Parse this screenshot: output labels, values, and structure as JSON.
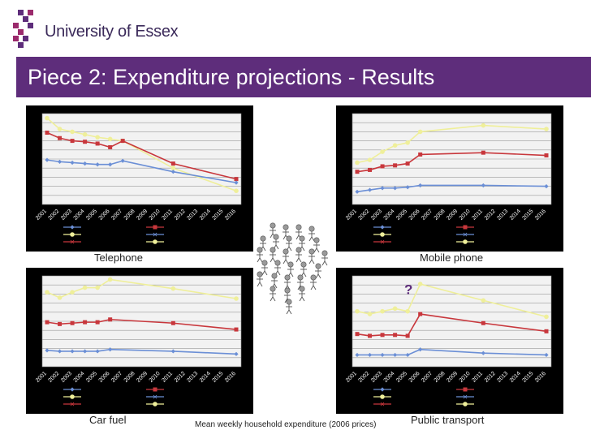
{
  "header": {
    "university": "University of Essex"
  },
  "title": "Piece 2: Expenditure projections - Results",
  "caption": "Mean weekly household expenditure (2006 prices)",
  "colors": {
    "purple": "#5e2d7b",
    "blue": "#6b8fd6",
    "red": "#c8373c",
    "yellow": "#efef9a",
    "panel": "#000000",
    "plot": "#f2f2f2"
  },
  "chart_data": [
    {
      "name": "Telephone",
      "type": "line",
      "x": [
        "2001",
        "2002",
        "2003",
        "2004",
        "2005",
        "2006",
        "2007",
        "2008",
        "2009",
        "2010",
        "2011",
        "2012",
        "2013",
        "2014",
        "2015",
        "2016"
      ],
      "ylim": [
        0,
        10
      ],
      "series": [
        {
          "color": "yellow",
          "points": [
            [
              2001,
              9.5
            ],
            [
              2002,
              8.3
            ],
            [
              2003,
              8.0
            ],
            [
              2004,
              7.7
            ],
            [
              2005,
              7.4
            ],
            [
              2006,
              7.2
            ],
            [
              2007,
              7.0
            ],
            [
              2011,
              4.0
            ],
            [
              2016,
              1.5
            ]
          ]
        },
        {
          "color": "red",
          "points": [
            [
              2001,
              7.9
            ],
            [
              2002,
              7.3
            ],
            [
              2003,
              7.0
            ],
            [
              2004,
              6.9
            ],
            [
              2005,
              6.7
            ],
            [
              2006,
              6.3
            ],
            [
              2007,
              7.0
            ],
            [
              2011,
              4.5
            ],
            [
              2016,
              2.8
            ]
          ]
        },
        {
          "color": "blue",
          "points": [
            [
              2001,
              4.9
            ],
            [
              2002,
              4.7
            ],
            [
              2003,
              4.6
            ],
            [
              2004,
              4.5
            ],
            [
              2005,
              4.4
            ],
            [
              2006,
              4.4
            ],
            [
              2007,
              4.8
            ],
            [
              2011,
              3.6
            ],
            [
              2016,
              2.4
            ]
          ]
        }
      ]
    },
    {
      "name": "Mobile phone",
      "type": "line",
      "x": [
        "2001",
        "2002",
        "2003",
        "2004",
        "2005",
        "2006",
        "2007",
        "2008",
        "2009",
        "2010",
        "2011",
        "2012",
        "2013",
        "2014",
        "2015",
        "2016"
      ],
      "ylim": [
        0,
        10
      ],
      "series": [
        {
          "color": "yellow",
          "points": [
            [
              2001,
              4.6
            ],
            [
              2002,
              4.9
            ],
            [
              2003,
              5.8
            ],
            [
              2004,
              6.5
            ],
            [
              2005,
              6.8
            ],
            [
              2006,
              8.0
            ],
            [
              2011,
              8.7
            ],
            [
              2016,
              8.3
            ]
          ]
        },
        {
          "color": "red",
          "points": [
            [
              2001,
              3.6
            ],
            [
              2002,
              3.8
            ],
            [
              2003,
              4.2
            ],
            [
              2004,
              4.3
            ],
            [
              2005,
              4.5
            ],
            [
              2006,
              5.5
            ],
            [
              2011,
              5.7
            ],
            [
              2016,
              5.4
            ]
          ]
        },
        {
          "color": "blue",
          "points": [
            [
              2001,
              1.4
            ],
            [
              2002,
              1.6
            ],
            [
              2003,
              1.8
            ],
            [
              2004,
              1.8
            ],
            [
              2005,
              1.9
            ],
            [
              2006,
              2.1
            ],
            [
              2011,
              2.1
            ],
            [
              2016,
              2.0
            ]
          ]
        }
      ]
    },
    {
      "name": "Car fuel",
      "type": "line",
      "x": [
        "2001",
        "2002",
        "2003",
        "2004",
        "2005",
        "2006",
        "2007",
        "2008",
        "2009",
        "2010",
        "2011",
        "2012",
        "2013",
        "2014",
        "2015",
        "2016"
      ],
      "ylim": [
        0,
        10
      ],
      "series": [
        {
          "color": "yellow",
          "points": [
            [
              2001,
              8.2
            ],
            [
              2002,
              7.6
            ],
            [
              2003,
              8.2
            ],
            [
              2004,
              8.7
            ],
            [
              2005,
              8.7
            ],
            [
              2006,
              9.6
            ],
            [
              2011,
              8.6
            ],
            [
              2016,
              7.5
            ]
          ]
        },
        {
          "color": "red",
          "points": [
            [
              2001,
              4.9
            ],
            [
              2002,
              4.7
            ],
            [
              2003,
              4.8
            ],
            [
              2004,
              4.9
            ],
            [
              2005,
              4.9
            ],
            [
              2006,
              5.2
            ],
            [
              2011,
              4.8
            ],
            [
              2016,
              4.1
            ]
          ]
        },
        {
          "color": "blue",
          "points": [
            [
              2001,
              1.8
            ],
            [
              2002,
              1.7
            ],
            [
              2003,
              1.7
            ],
            [
              2004,
              1.7
            ],
            [
              2005,
              1.7
            ],
            [
              2006,
              1.9
            ],
            [
              2011,
              1.7
            ],
            [
              2016,
              1.4
            ]
          ]
        }
      ]
    },
    {
      "name": "Public transport",
      "type": "line",
      "x": [
        "2001",
        "2002",
        "2003",
        "2004",
        "2005",
        "2006",
        "2007",
        "2008",
        "2009",
        "2010",
        "2011",
        "2012",
        "2013",
        "2014",
        "2015",
        "2016"
      ],
      "ylim": [
        0,
        10
      ],
      "series": [
        {
          "color": "yellow",
          "points": [
            [
              2001,
              6.1
            ],
            [
              2002,
              5.8
            ],
            [
              2003,
              6.1
            ],
            [
              2004,
              6.4
            ],
            [
              2005,
              6.1
            ],
            [
              2006,
              9.1
            ],
            [
              2011,
              7.3
            ],
            [
              2016,
              5.5
            ]
          ]
        },
        {
          "color": "red",
          "points": [
            [
              2001,
              3.6
            ],
            [
              2002,
              3.4
            ],
            [
              2003,
              3.5
            ],
            [
              2004,
              3.5
            ],
            [
              2005,
              3.4
            ],
            [
              2006,
              5.8
            ],
            [
              2011,
              4.8
            ],
            [
              2016,
              3.9
            ]
          ]
        },
        {
          "color": "blue",
          "points": [
            [
              2001,
              1.3
            ],
            [
              2002,
              1.3
            ],
            [
              2003,
              1.3
            ],
            [
              2004,
              1.3
            ],
            [
              2005,
              1.3
            ],
            [
              2006,
              1.9
            ],
            [
              2011,
              1.5
            ],
            [
              2016,
              1.3
            ]
          ]
        }
      ],
      "annotation": "?"
    }
  ]
}
